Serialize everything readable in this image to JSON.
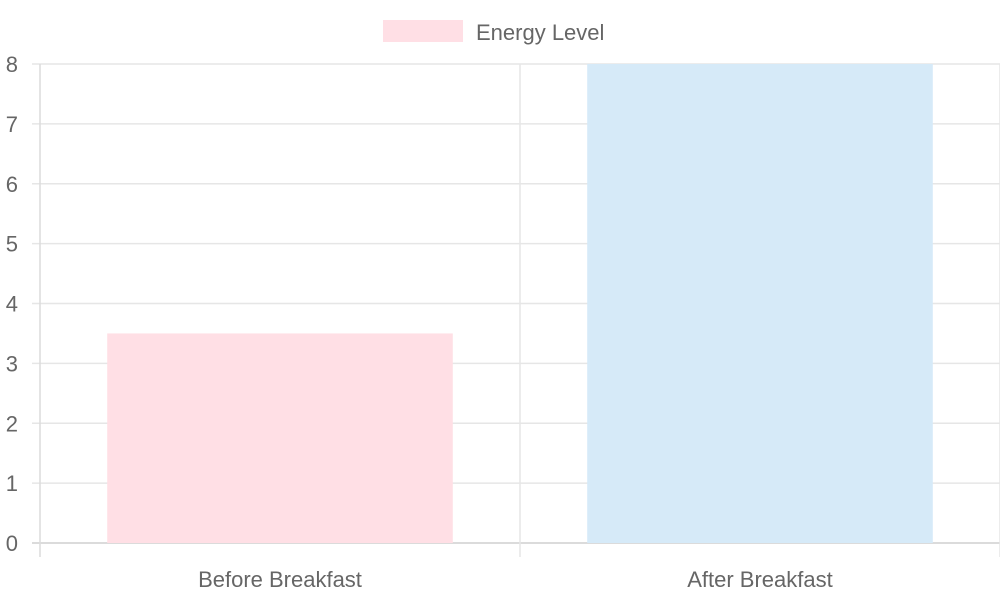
{
  "chart_data": {
    "type": "bar",
    "categories": [
      "Before Breakfast",
      "After Breakfast"
    ],
    "series": [
      {
        "name": "Energy Level",
        "values": [
          3.5,
          8
        ]
      }
    ],
    "bar_colors": [
      "#ffdfe5",
      "#d6eaf8"
    ],
    "legend": {
      "position": "top",
      "label": "Energy Level",
      "swatch_color": "#ffdfe5"
    },
    "ylim": [
      0,
      8
    ],
    "y_ticks": [
      "0",
      "1",
      "2",
      "3",
      "4",
      "5",
      "6",
      "7",
      "8"
    ],
    "grid": true,
    "title": "",
    "xlabel": "",
    "ylabel": ""
  }
}
